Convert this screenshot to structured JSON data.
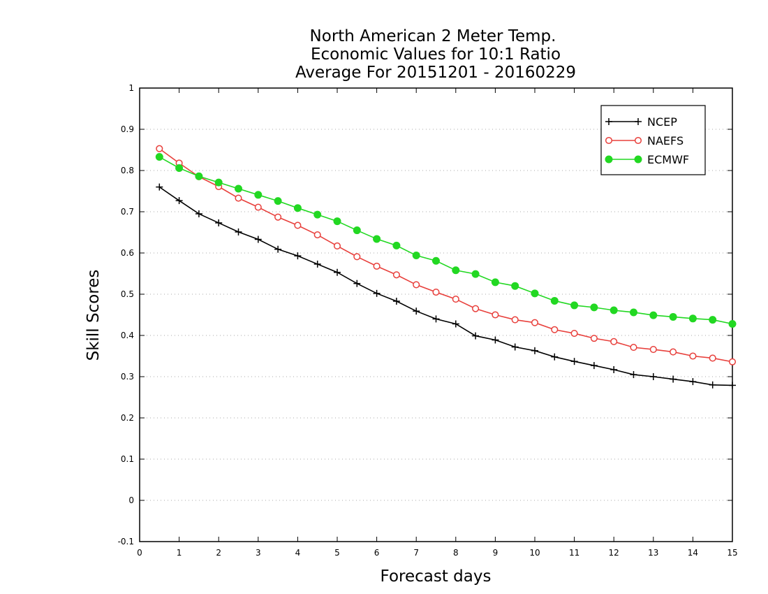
{
  "chart_data": {
    "type": "line",
    "title_lines": [
      "North American 2 Meter Temp.",
      "Economic Values for 10:1 Ratio",
      "Average For 20151201 - 20160229"
    ],
    "xlabel": "Forecast days",
    "ylabel": "Skill Scores",
    "xlim": [
      0,
      15
    ],
    "ylim": [
      -0.1,
      1
    ],
    "x_ticks": [
      0,
      1,
      2,
      3,
      4,
      5,
      6,
      7,
      8,
      9,
      10,
      11,
      12,
      13,
      14,
      15
    ],
    "y_ticks": [
      -0.1,
      0,
      0.1,
      0.2,
      0.3,
      0.4,
      0.5,
      0.6,
      0.7,
      0.8,
      0.9,
      1
    ],
    "y_tick_labels": [
      "-0.1",
      "0",
      "0.1",
      "0.2",
      "0.3",
      "0.4",
      "0.5",
      "0.6",
      "0.7",
      "0.8",
      "0.9",
      "1"
    ],
    "grid": true,
    "legend_position": "top-right",
    "x": [
      0.5,
      1,
      1.5,
      2,
      2.5,
      3,
      3.5,
      4,
      4.5,
      5,
      5.5,
      6,
      6.5,
      7,
      7.5,
      8,
      8.5,
      9,
      9.5,
      10,
      10.5,
      11,
      11.5,
      12,
      12.5,
      13,
      13.5,
      14,
      14.5,
      15
    ],
    "series": [
      {
        "name": "NCEP",
        "color": "#000000",
        "marker": "plus",
        "values": [
          0.76,
          0.727,
          0.695,
          0.673,
          0.651,
          0.633,
          0.609,
          0.593,
          0.573,
          0.553,
          0.526,
          0.502,
          0.483,
          0.459,
          0.44,
          0.428,
          0.399,
          0.389,
          0.372,
          0.363,
          0.348,
          0.337,
          0.327,
          0.317,
          0.305,
          0.3,
          0.294,
          0.288,
          0.28,
          0.279
        ]
      },
      {
        "name": "NAEFS",
        "color": "#e8403c",
        "marker": "open-circle",
        "values": [
          0.853,
          0.818,
          0.785,
          0.761,
          0.733,
          0.711,
          0.687,
          0.667,
          0.644,
          0.617,
          0.591,
          0.568,
          0.547,
          0.523,
          0.505,
          0.488,
          0.465,
          0.45,
          0.438,
          0.431,
          0.414,
          0.405,
          0.393,
          0.385,
          0.371,
          0.366,
          0.36,
          0.35,
          0.345,
          0.336
        ]
      },
      {
        "name": "ECMWF",
        "color": "#22d822",
        "marker": "filled-circle",
        "values": [
          0.833,
          0.806,
          0.786,
          0.771,
          0.756,
          0.741,
          0.726,
          0.709,
          0.693,
          0.677,
          0.655,
          0.634,
          0.618,
          0.594,
          0.581,
          0.558,
          0.549,
          0.529,
          0.52,
          0.502,
          0.484,
          0.473,
          0.468,
          0.461,
          0.456,
          0.449,
          0.445,
          0.441,
          0.438,
          0.428
        ]
      }
    ]
  }
}
